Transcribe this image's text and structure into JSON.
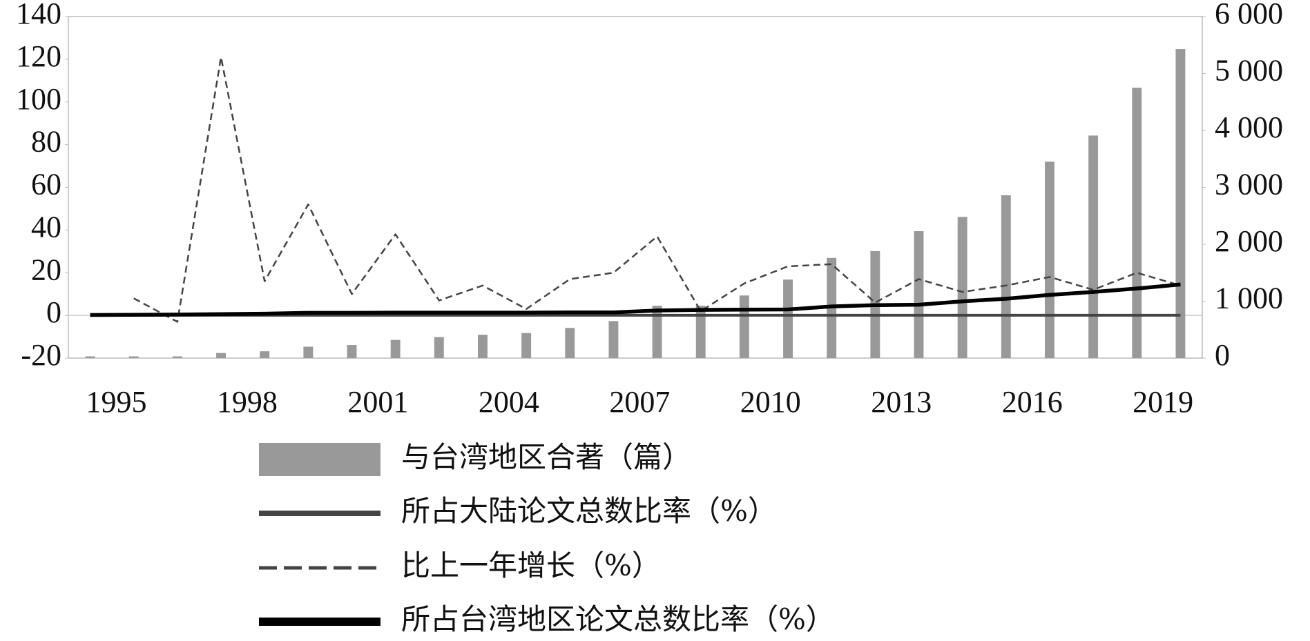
{
  "chart_data": {
    "type": "bar_line",
    "categories": [
      "1995",
      null,
      null,
      "1998",
      null,
      null,
      "2001",
      null,
      null,
      "2004",
      null,
      null,
      "2007",
      null,
      null,
      "2010",
      null,
      null,
      "2013",
      null,
      null,
      "2016",
      null,
      null,
      "2019",
      null
    ],
    "ylim": [
      -20,
      140
    ],
    "yticks": [
      -20,
      0,
      20,
      40,
      60,
      80,
      100,
      120,
      140
    ],
    "y2lim": [
      0,
      6000
    ],
    "y2ticks": [
      0,
      {
        "value": 1000,
        "label": "1 000"
      },
      {
        "value": 2000,
        "label": "2 000"
      },
      {
        "value": 3000,
        "label": "3 000"
      },
      {
        "value": 4000,
        "label": "4 000"
      },
      {
        "value": 5000,
        "label": "5 000"
      },
      {
        "value": 6000,
        "label": "6 000"
      }
    ],
    "series": [
      {
        "name": "与台湾地区合著（篇）",
        "type": "bar",
        "axis": "y2",
        "color": "#999999",
        "values": [
          30,
          30,
          30,
          90,
          120,
          200,
          230,
          320,
          370,
          410,
          440,
          530,
          650,
          920,
          920,
          1100,
          1380,
          1760,
          1880,
          2230,
          2480,
          2860,
          3450,
          3910,
          4750,
          5430
        ]
      },
      {
        "name": "所占大陆论文总数比率（%）",
        "type": "line",
        "style": "solid",
        "color": "#444444",
        "values": [
          0.1,
          0.1,
          0.1,
          0.1,
          0.1,
          0.1,
          0.1,
          0.1,
          0.1,
          0.1,
          0.1,
          0.1,
          0.1,
          0.1,
          0.1,
          0.1,
          0.1,
          0.1,
          0.1,
          0.1,
          0.1,
          0.1,
          0.1,
          0.1,
          0.1,
          0.1
        ]
      },
      {
        "name": "比上一年增长（%）",
        "type": "line",
        "style": "dashed",
        "color": "#444444",
        "values": [
          null,
          8,
          -3,
          121,
          16,
          52,
          10,
          38,
          7,
          14,
          3,
          17,
          20,
          37,
          2,
          15,
          23,
          24,
          6,
          17,
          11,
          14,
          18,
          12,
          20,
          14
        ]
      },
      {
        "name": "所占台湾地区论文总数比率（%）",
        "type": "line",
        "style": "bold",
        "color": "#000000",
        "values": [
          0.2,
          0.3,
          0.4,
          0.6,
          0.8,
          1.2,
          1.2,
          1.3,
          1.3,
          1.3,
          1.3,
          1.4,
          1.4,
          2.3,
          2.6,
          2.7,
          2.8,
          4.2,
          4.8,
          5.0,
          6.6,
          7.8,
          9.6,
          11,
          12.6,
          14.5
        ]
      }
    ]
  }
}
